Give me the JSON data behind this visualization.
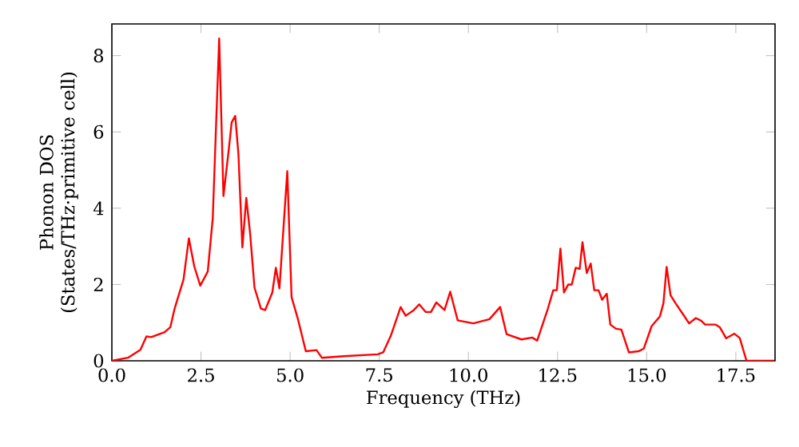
{
  "chart_data": {
    "type": "line",
    "xlabel": "Frequency (THz)",
    "ylabel": "Phonon DOS (States/THz·primitive cell)",
    "series": [
      {
        "color": "#ff0000",
        "x": [
          0,
          0.45,
          0.8,
          0.97,
          1.1,
          1.48,
          1.64,
          1.76,
          2.01,
          2.16,
          2.31,
          2.48,
          2.69,
          2.83,
          3.01,
          3.13,
          3.28,
          3.36,
          3.46,
          3.55,
          3.66,
          3.77,
          3.88,
          4.0,
          4.18,
          4.3,
          4.5,
          4.6,
          4.7,
          4.92,
          5.04,
          5.22,
          5.44,
          5.74,
          5.89,
          6.5,
          7.46,
          7.61,
          7.83,
          8.1,
          8.24,
          8.47,
          8.62,
          8.8,
          8.95,
          9.1,
          9.33,
          9.49,
          9.7,
          10.14,
          10.59,
          10.89,
          11.07,
          11.49,
          11.79,
          11.93,
          12.23,
          12.38,
          12.48,
          12.58,
          12.68,
          12.8,
          12.9,
          13.01,
          13.12,
          13.2,
          13.32,
          13.43,
          13.53,
          13.65,
          13.75,
          13.88,
          13.98,
          14.14,
          14.29,
          14.5,
          14.77,
          14.92,
          15.14,
          15.37,
          15.47,
          15.56,
          15.67,
          15.81,
          15.99,
          16.19,
          16.38,
          16.53,
          16.64,
          16.93,
          17.05,
          17.23,
          17.46,
          17.61,
          17.8,
          18.58
        ],
        "values": [
          0,
          0.08,
          0.29,
          0.64,
          0.62,
          0.75,
          0.88,
          1.37,
          2.13,
          3.21,
          2.48,
          1.97,
          2.34,
          3.74,
          8.45,
          4.32,
          5.55,
          6.25,
          6.42,
          5.41,
          2.97,
          4.27,
          3.32,
          1.92,
          1.37,
          1.33,
          1.79,
          2.44,
          1.9,
          4.97,
          1.67,
          1.09,
          0.25,
          0.28,
          0.08,
          0.12,
          0.17,
          0.22,
          0.67,
          1.41,
          1.18,
          1.33,
          1.48,
          1.28,
          1.28,
          1.53,
          1.33,
          1.81,
          1.06,
          0.98,
          1.09,
          1.41,
          0.7,
          0.56,
          0.61,
          0.53,
          1.37,
          1.85,
          1.85,
          2.94,
          1.79,
          2.0,
          2.0,
          2.44,
          2.41,
          3.11,
          2.3,
          2.55,
          1.85,
          1.85,
          1.6,
          1.76,
          0.95,
          0.84,
          0.82,
          0.22,
          0.25,
          0.32,
          0.91,
          1.16,
          1.51,
          2.46,
          1.72,
          1.51,
          1.26,
          0.98,
          1.12,
          1.05,
          0.95,
          0.95,
          0.88,
          0.59,
          0.71,
          0.6,
          0,
          0
        ]
      }
    ],
    "xlim": [
      0,
      18.6
    ],
    "ylim": [
      0,
      8.83
    ],
    "xticks": [
      {
        "value": 0,
        "label": "0.0"
      },
      {
        "value": 2.5,
        "label": "2.5"
      },
      {
        "value": 5,
        "label": "5.0"
      },
      {
        "value": 7.5,
        "label": "7.5"
      },
      {
        "value": 10,
        "label": "10.0"
      },
      {
        "value": 12.5,
        "label": "12.5"
      },
      {
        "value": 15,
        "label": "15.0"
      },
      {
        "value": 17.5,
        "label": "17.5"
      }
    ],
    "yticks": [
      0,
      2,
      4,
      6,
      8
    ],
    "grid": false,
    "marker": "none",
    "line_style": "solid"
  }
}
